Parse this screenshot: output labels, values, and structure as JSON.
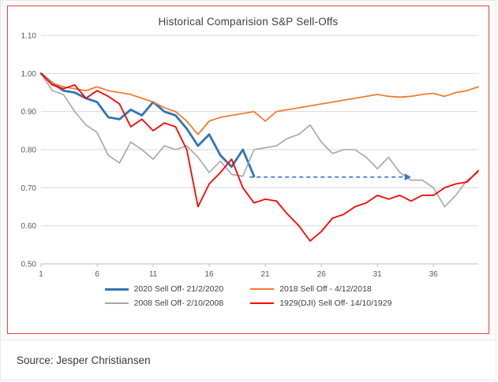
{
  "source": {
    "text": "Source: Jesper Christiansen"
  },
  "colors": {
    "chart_border": "#e8433c",
    "grid": "#d9d9d9",
    "axis": "#bfbfbf",
    "tick_label": "#595959",
    "title": "#404040"
  },
  "chart_data": {
    "type": "line",
    "title": "Historical Comparision S&P Sell-Offs",
    "xlabel": "",
    "ylabel": "",
    "xlim": [
      1,
      40
    ],
    "ylim": [
      0.5,
      1.1
    ],
    "x_ticks": [
      1,
      6,
      11,
      16,
      21,
      26,
      31,
      36
    ],
    "y_ticks": [
      "0.50",
      "0.60",
      "0.70",
      "0.80",
      "0.90",
      "1.00",
      "1.10"
    ],
    "grid": "horizontal",
    "legend_position": "bottom",
    "x": [
      1,
      2,
      3,
      4,
      5,
      6,
      7,
      8,
      9,
      10,
      11,
      12,
      13,
      14,
      15,
      16,
      17,
      18,
      19,
      20,
      21,
      22,
      23,
      24,
      25,
      26,
      27,
      28,
      29,
      30,
      31,
      32,
      33,
      34,
      35,
      36,
      37,
      38,
      39,
      40
    ],
    "series": [
      {
        "name": "2020 Sell Off- 21/2/2020",
        "color": "#2E75B6",
        "width": 2.8,
        "values": [
          1.0,
          0.975,
          0.955,
          0.95,
          0.935,
          0.925,
          0.885,
          0.88,
          0.905,
          0.89,
          0.925,
          0.9,
          0.89,
          0.855,
          0.81,
          0.84,
          0.785,
          0.755,
          0.8,
          0.73
        ]
      },
      {
        "name": "2018 Sell Off - 4/12/2018",
        "color": "#ED7D31",
        "width": 1.8,
        "values": [
          1.0,
          0.975,
          0.965,
          0.96,
          0.955,
          0.965,
          0.955,
          0.95,
          0.945,
          0.935,
          0.925,
          0.91,
          0.9,
          0.875,
          0.84,
          0.875,
          0.885,
          0.89,
          0.895,
          0.9,
          0.875,
          0.9,
          0.905,
          0.91,
          0.915,
          0.92,
          0.925,
          0.93,
          0.935,
          0.94,
          0.945,
          0.94,
          0.938,
          0.94,
          0.945,
          0.948,
          0.94,
          0.95,
          0.955,
          0.965
        ]
      },
      {
        "name": "2008 Sell Off- 2/10/2008",
        "color": "#A5A5A5",
        "width": 1.6,
        "values": [
          1.0,
          0.955,
          0.945,
          0.9,
          0.865,
          0.845,
          0.785,
          0.765,
          0.82,
          0.8,
          0.775,
          0.81,
          0.8,
          0.81,
          0.78,
          0.74,
          0.77,
          0.735,
          0.73,
          0.8,
          0.805,
          0.81,
          0.83,
          0.84,
          0.865,
          0.82,
          0.79,
          0.8,
          0.8,
          0.78,
          0.75,
          0.78,
          0.74,
          0.72,
          0.72,
          0.7,
          0.65,
          0.68,
          0.72,
          0.74
        ]
      },
      {
        "name": "1929(DJI) Sell Off- 14/10/1929",
        "color": "#FF0000",
        "width": 1.8,
        "values": [
          1.0,
          0.97,
          0.96,
          0.97,
          0.935,
          0.955,
          0.94,
          0.92,
          0.86,
          0.88,
          0.85,
          0.87,
          0.86,
          0.8,
          0.65,
          0.71,
          0.74,
          0.775,
          0.7,
          0.66,
          0.67,
          0.665,
          0.63,
          0.6,
          0.56,
          0.585,
          0.62,
          0.63,
          0.65,
          0.66,
          0.68,
          0.67,
          0.68,
          0.665,
          0.68,
          0.68,
          0.7,
          0.71,
          0.715,
          0.745
        ]
      }
    ],
    "annotation": {
      "type": "dashed-arrow",
      "y": 0.728,
      "x_start": 19.6,
      "x_end": 34,
      "color": "#4472C4"
    }
  }
}
